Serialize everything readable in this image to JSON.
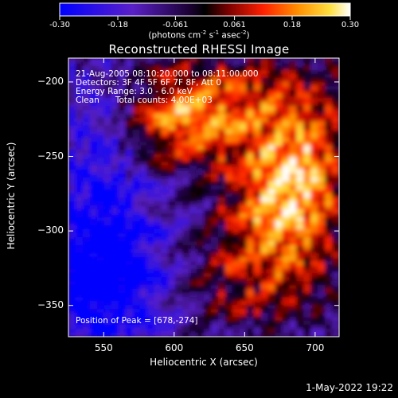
{
  "chart_data": {
    "type": "heatmap",
    "title": "Reconstructed RHESSI Image",
    "xlabel": "Heliocentric X (arcsec)",
    "ylabel": "Heliocentric Y (arcsec)",
    "xlim": [
      525,
      717
    ],
    "ylim": [
      -371,
      -184
    ],
    "x_ticks": [
      550,
      600,
      650,
      700
    ],
    "y_ticks": [
      -200,
      -250,
      -300,
      -350
    ],
    "colorbar": {
      "ticks": [
        "-0.30",
        "-0.18",
        "-0.061",
        "0.061",
        "0.18",
        "0.30"
      ],
      "range": [
        -0.3,
        0.3
      ],
      "unit_parts": {
        "pre": "(photons cm",
        "e1": "-2",
        "mid1": " s",
        "e2": "-1",
        "mid2": " asec",
        "e3": "-2",
        "post": ")"
      }
    },
    "annotations": {
      "time_range": "21-Aug-2005 08:10:20.000 to 08:11:00.000",
      "detectors": "Detectors: 3F 4F 5F 6F 7F 8F, Att 0",
      "energy": "Energy Range: 3.0 - 6.0 keV",
      "method": "Clean      Total counts: 4.00E+03",
      "peak": "Position of Peak = [678,-274]"
    },
    "peak": {
      "x": 678,
      "y": -274
    }
  },
  "footer": {
    "timestamp": "1-May-2022 19:22"
  }
}
